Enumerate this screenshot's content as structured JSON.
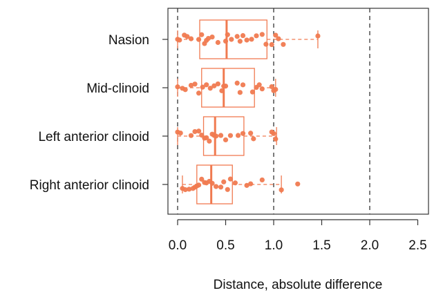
{
  "chart_data": {
    "type": "boxplot",
    "title": "",
    "xlabel": "Distance, absolute difference",
    "ylabel": "",
    "xlim": [
      -0.1,
      2.6
    ],
    "x_ticks": [
      "0.0",
      "0.5",
      "1.0",
      "1.5",
      "2.0",
      "2.5"
    ],
    "x_tick_values": [
      0,
      0.5,
      1.0,
      1.5,
      2.0,
      2.5
    ],
    "reference_lines": [
      0,
      1.0,
      2.0
    ],
    "grid": false,
    "colors": {
      "accent": "#f07a50",
      "refline": "#222222",
      "frame": "#333333"
    },
    "categories": [
      "Nasion",
      "Mid-clinoid",
      "Left anterior clinoid",
      "Right anterior clinoid"
    ],
    "boxes": [
      {
        "name": "Nasion",
        "whisker_low": 0.0,
        "q1": 0.23,
        "median": 0.51,
        "q3": 0.93,
        "whisker_high": 1.46,
        "points": [
          0.0,
          0.02,
          0.07,
          0.1,
          0.14,
          0.22,
          0.25,
          0.28,
          0.3,
          0.32,
          0.36,
          0.42,
          0.5,
          0.52,
          0.56,
          0.62,
          0.65,
          0.68,
          0.72,
          0.77,
          0.82,
          0.88,
          0.92,
          0.98,
          1.02,
          1.05,
          1.1,
          1.46
        ]
      },
      {
        "name": "Mid-clinoid",
        "whisker_low": 0.0,
        "q1": 0.25,
        "median": 0.48,
        "q3": 0.8,
        "whisker_high": 1.02,
        "points": [
          0.0,
          0.05,
          0.08,
          0.14,
          0.18,
          0.22,
          0.26,
          0.3,
          0.34,
          0.38,
          0.42,
          0.46,
          0.48,
          0.5,
          0.62,
          0.65,
          0.68,
          0.78,
          0.82,
          0.85,
          0.88,
          0.98,
          1.0,
          1.02
        ]
      },
      {
        "name": "Left anterior clinoid",
        "whisker_low": 0.0,
        "q1": 0.27,
        "median": 0.39,
        "q3": 0.69,
        "whisker_high": 1.03,
        "points": [
          0.0,
          0.03,
          0.14,
          0.18,
          0.22,
          0.25,
          0.28,
          0.3,
          0.33,
          0.36,
          0.38,
          0.4,
          0.45,
          0.5,
          0.55,
          0.63,
          0.68,
          0.76,
          0.79,
          0.98,
          1.0,
          1.02
        ]
      },
      {
        "name": "Right anterior clinoid",
        "whisker_low": 0.05,
        "q1": 0.2,
        "median": 0.35,
        "q3": 0.57,
        "whisker_high": 1.08,
        "points": [
          0.05,
          0.08,
          0.12,
          0.16,
          0.18,
          0.2,
          0.22,
          0.25,
          0.28,
          0.3,
          0.33,
          0.36,
          0.4,
          0.45,
          0.48,
          0.52,
          0.55,
          0.6,
          0.72,
          0.76,
          0.88,
          1.08,
          1.25
        ]
      }
    ]
  }
}
